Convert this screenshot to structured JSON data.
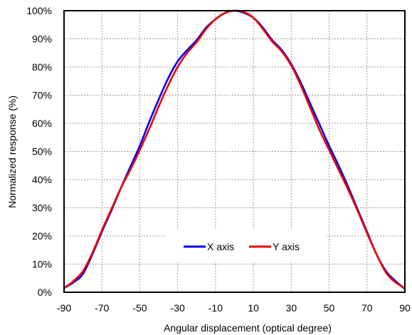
{
  "chart_data": {
    "type": "line",
    "xlabel": "Angular displacement (optical degree)",
    "ylabel": "Normalized response (%)",
    "xlim": [
      -90,
      90
    ],
    "ylim": [
      0,
      100
    ],
    "x_ticks": [
      "-90",
      "-70",
      "-50",
      "-30",
      "-10",
      "10",
      "30",
      "50",
      "70",
      "90"
    ],
    "y_ticks": [
      "0%",
      "10%",
      "20%",
      "30%",
      "40%",
      "50%",
      "60%",
      "70%",
      "80%",
      "90%",
      "100%"
    ],
    "grid": true,
    "legend": "bottom-center",
    "series": [
      {
        "name": "X axis",
        "color": "#0000ee",
        "x": [
          -90,
          -85,
          -80,
          -75,
          -70,
          -65,
          -60,
          -55,
          -50,
          -45,
          -40,
          -35,
          -30,
          -25,
          -20,
          -15,
          -10,
          -5,
          0,
          5,
          10,
          15,
          20,
          25,
          30,
          35,
          40,
          45,
          50,
          55,
          60,
          65,
          70,
          75,
          80,
          85,
          90
        ],
        "y": [
          1.5,
          3.5,
          6.5,
          13.5,
          21.5,
          29,
          37,
          44.5,
          52,
          60.5,
          68.5,
          76,
          82,
          86,
          89.5,
          94,
          97,
          99.2,
          100,
          99.2,
          97.5,
          94,
          89.5,
          86,
          81,
          74.5,
          67,
          59.5,
          52,
          45,
          37.5,
          29.5,
          21.5,
          13.5,
          7.5,
          4,
          1.2
        ]
      },
      {
        "name": "Y axis",
        "color": "#ee0000",
        "x": [
          -90,
          -85,
          -80,
          -75,
          -70,
          -65,
          -60,
          -55,
          -50,
          -45,
          -40,
          -35,
          -30,
          -25,
          -20,
          -15,
          -10,
          -5,
          0,
          5,
          10,
          15,
          20,
          25,
          30,
          35,
          40,
          45,
          50,
          55,
          60,
          65,
          70,
          75,
          80,
          85,
          90
        ],
        "y": [
          1.5,
          4,
          7.5,
          14,
          22,
          29.5,
          37,
          43.5,
          50.5,
          58,
          66,
          73.5,
          80,
          85,
          88.8,
          93.5,
          97,
          99.2,
          100,
          99.5,
          97.5,
          93.5,
          89,
          85.5,
          80.5,
          73.5,
          65.5,
          57.5,
          50.5,
          43.5,
          36.5,
          29,
          21,
          13.5,
          7,
          3.5,
          1.5
        ]
      }
    ]
  }
}
